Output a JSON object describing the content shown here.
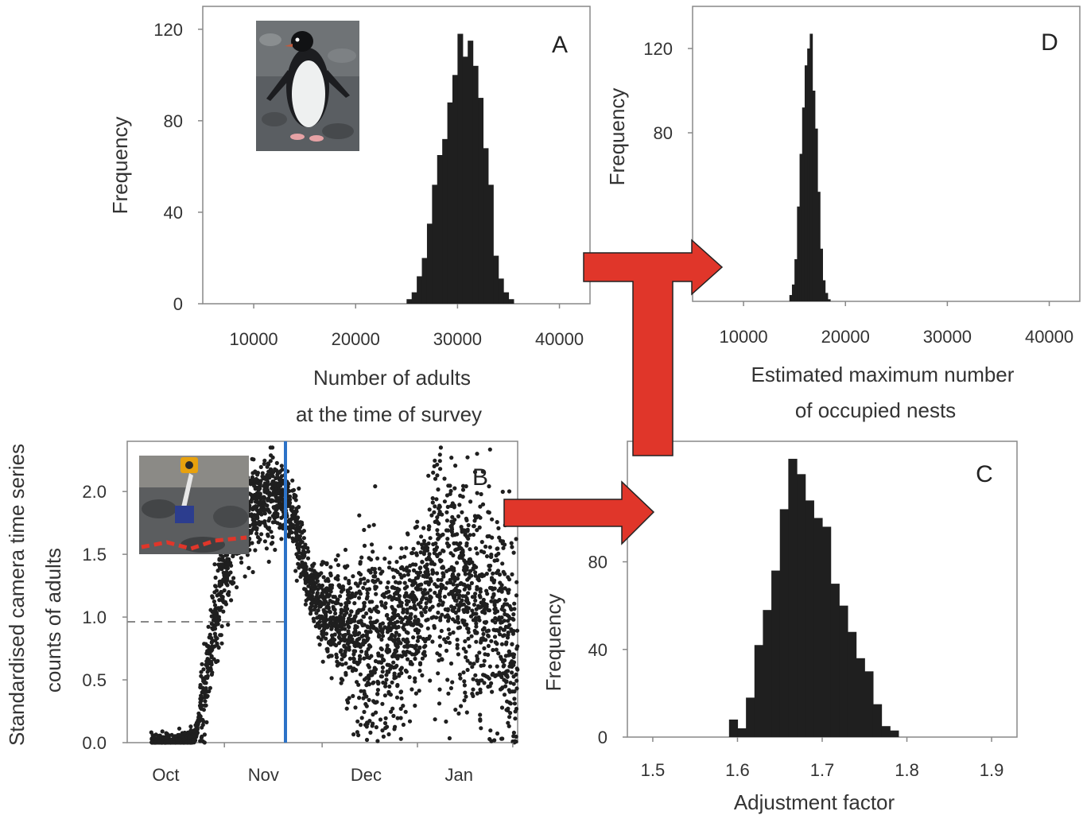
{
  "chart_data": [
    {
      "panel": "A",
      "type": "bar",
      "panel_letter": "A",
      "xlabel_line1": "Number of adults",
      "xlabel_line2": "at the time of survey",
      "ylabel": "Frequency",
      "xticks": [
        "10000",
        "20000",
        "30000",
        "40000"
      ],
      "yticks": [
        "0",
        "40",
        "80",
        "120"
      ],
      "xlim": [
        5000,
        43000
      ],
      "ylim": [
        0,
        130
      ],
      "bin_width": 500,
      "bins_start": 25000,
      "values": [
        2,
        5,
        12,
        20,
        35,
        52,
        65,
        72,
        88,
        100,
        118,
        108,
        115,
        104,
        90,
        68,
        52,
        21,
        11,
        5,
        2
      ],
      "inset": "penguin-photo"
    },
    {
      "panel": "B",
      "type": "scatter",
      "panel_letter": "B",
      "ylabel_line1": "Standardised camera time series",
      "ylabel_line2": "counts of adults",
      "xticks": [
        "Oct",
        "Nov",
        "Dec",
        "Jan"
      ],
      "yticks": [
        "0.0",
        "0.5",
        "1.0",
        "1.5",
        "2.0"
      ],
      "ylim": [
        0,
        2.4
      ],
      "reference_line_y": 1.0,
      "survey_line_x": "Nov",
      "series_profile": {
        "days": [
          0,
          10,
          18,
          22,
          28,
          35,
          40,
          47,
          50,
          58,
          65,
          75,
          85,
          95,
          103,
          110,
          118,
          128,
          136,
          145,
          150
        ],
        "mean": [
          0.0,
          0.0,
          0.05,
          0.4,
          1.2,
          1.7,
          1.8,
          1.95,
          2.0,
          1.85,
          1.2,
          1.0,
          0.95,
          0.9,
          1.0,
          1.2,
          1.4,
          1.2,
          1.1,
          0.9,
          0.5
        ]
      },
      "inset": "camera-photo"
    },
    {
      "panel": "C",
      "type": "bar",
      "panel_letter": "C",
      "xlabel": "Adjustment factor",
      "ylabel": "Frequency",
      "xticks": [
        "1.5",
        "1.6",
        "1.7",
        "1.8",
        "1.9"
      ],
      "yticks": [
        "0",
        "40",
        "80"
      ],
      "xlim": [
        1.47,
        1.93
      ],
      "ylim": [
        0,
        135
      ],
      "bin_width": 0.01,
      "bins_start": 1.59,
      "values": [
        8,
        4,
        18,
        42,
        58,
        76,
        104,
        127,
        120,
        108,
        100,
        96,
        70,
        60,
        48,
        36,
        30,
        15,
        5,
        3
      ]
    },
    {
      "panel": "D",
      "type": "bar",
      "panel_letter": "D",
      "xlabel_line1": "Estimated maximum number",
      "xlabel_line2": "of occupied nests",
      "ylabel": "Frequency",
      "xticks": [
        "10000",
        "20000",
        "30000",
        "40000"
      ],
      "yticks": [
        "80",
        "120"
      ],
      "xlim": [
        5000,
        43000
      ],
      "ylim": [
        0,
        140
      ],
      "bin_width": 250,
      "bins_start": 14500,
      "values": [
        3,
        8,
        20,
        45,
        70,
        92,
        112,
        120,
        127,
        100,
        82,
        52,
        25,
        10,
        4,
        1
      ]
    }
  ],
  "colors": {
    "bar": "#1f1f1f",
    "arrow_fill": "#e0362a",
    "arrow_stroke": "#222222",
    "survey_line": "#2c72c7",
    "reference_line": "#888888",
    "frame": "#888888"
  }
}
